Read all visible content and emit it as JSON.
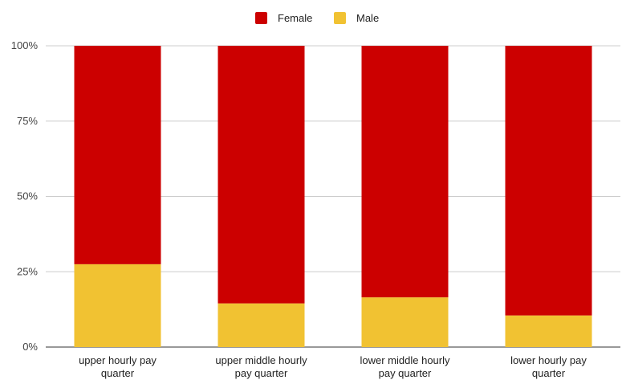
{
  "chart_data": {
    "type": "bar",
    "stacked": true,
    "title": "",
    "xlabel": "",
    "ylabel": "",
    "ylim": [
      0,
      100
    ],
    "y_ticks": [
      "0%",
      "25%",
      "50%",
      "75%",
      "100%"
    ],
    "y_tick_values": [
      0,
      25,
      50,
      75,
      100
    ],
    "grid": true,
    "legend_position": "top-center",
    "categories": [
      [
        "upper hourly pay",
        "quarter"
      ],
      [
        "upper middle hourly",
        "pay quarter"
      ],
      [
        "lower middle hourly",
        "pay quarter"
      ],
      [
        "lower hourly pay",
        "quarter"
      ]
    ],
    "series": [
      {
        "name": "Male",
        "color": "#f1c232",
        "values": [
          27.5,
          14.5,
          16.5,
          10.5
        ]
      },
      {
        "name": "Female",
        "color": "#cc0000",
        "values": [
          72.5,
          85.5,
          83.5,
          89.5
        ]
      }
    ],
    "legend": [
      {
        "name": "Female",
        "color": "#cc0000"
      },
      {
        "name": "Male",
        "color": "#f1c232"
      }
    ]
  }
}
